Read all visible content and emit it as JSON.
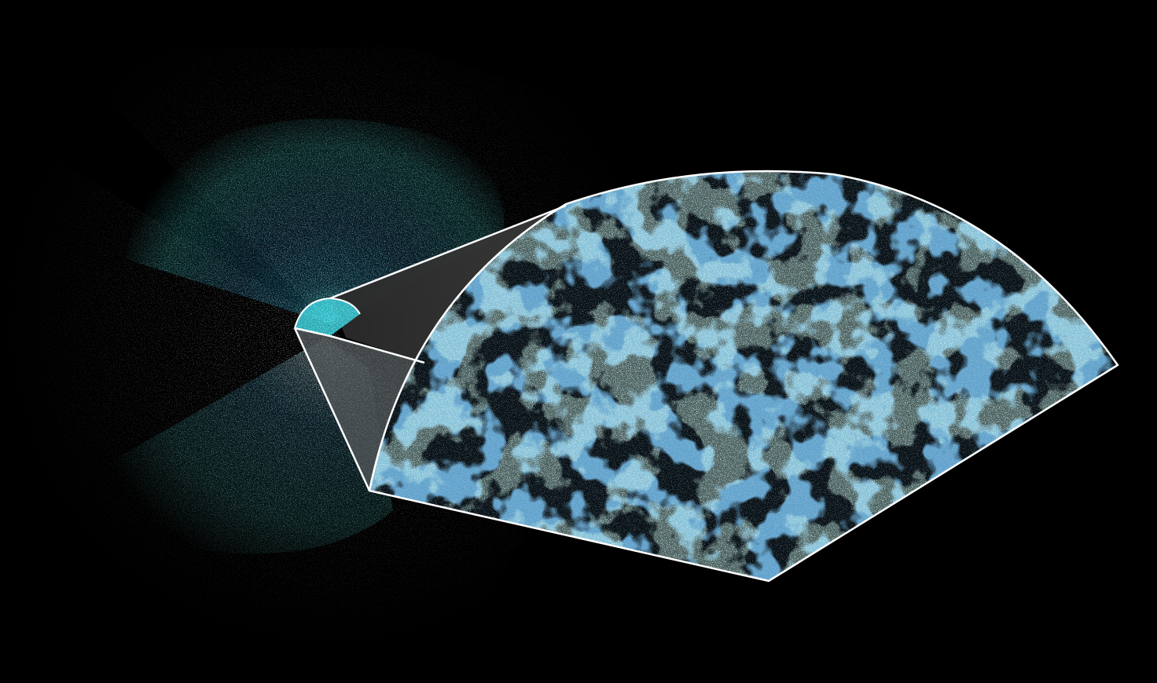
{
  "image": {
    "description_icon": "galaxy-map-icon",
    "colors": {
      "background": "#000000",
      "glow_teal": "#1fb5b8",
      "glow_blue": "#1a6fa0",
      "glow_cyan": "#4fe3e8",
      "wedge_fill": "#333333",
      "outline": "#ffffff",
      "filament": "#a8f0d8",
      "void": "#061016"
    }
  }
}
